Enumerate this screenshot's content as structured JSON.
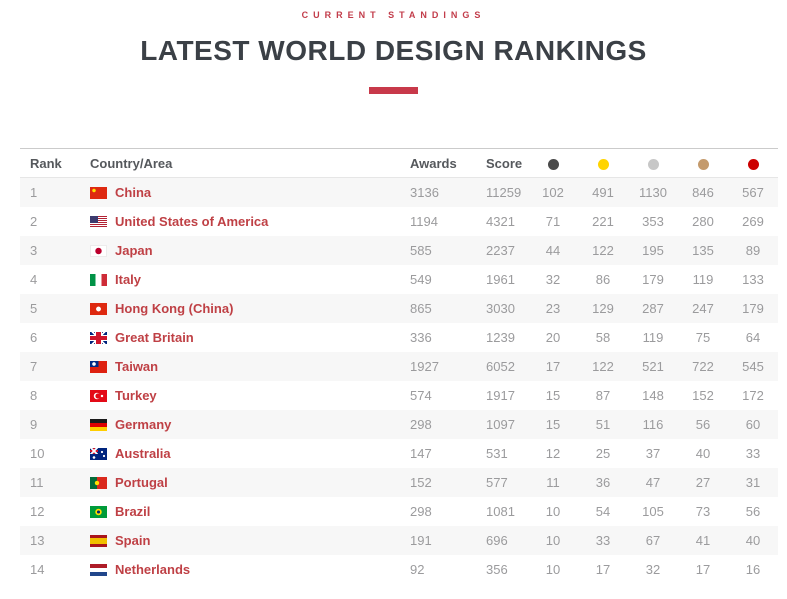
{
  "header": {
    "eyebrow": "CURRENT STANDINGS",
    "title": "LATEST WORLD DESIGN RANKINGS"
  },
  "colors": {
    "accent_red": "#c8394a",
    "country_link_red": "#bf4045",
    "title_charcoal": "#3b4046"
  },
  "table": {
    "columns": {
      "rank": "Rank",
      "country": "Country/Area",
      "awards": "Awards",
      "score": "Score"
    },
    "medal_columns": [
      {
        "name": "platinum",
        "color": "#4a4a4a"
      },
      {
        "name": "gold",
        "color": "#ffd400"
      },
      {
        "name": "silver",
        "color": "#c7c7c7"
      },
      {
        "name": "bronze",
        "color": "#c49a6c"
      },
      {
        "name": "iron",
        "color": "#cc0000"
      }
    ],
    "rows": [
      {
        "rank": 1,
        "flag": "china",
        "country": "China",
        "awards": 3136,
        "score": 11259,
        "medals": [
          102,
          491,
          1130,
          846,
          567
        ]
      },
      {
        "rank": 2,
        "flag": "usa",
        "country": "United States of America",
        "awards": 1194,
        "score": 4321,
        "medals": [
          71,
          221,
          353,
          280,
          269
        ]
      },
      {
        "rank": 3,
        "flag": "japan",
        "country": "Japan",
        "awards": 585,
        "score": 2237,
        "medals": [
          44,
          122,
          195,
          135,
          89
        ]
      },
      {
        "rank": 4,
        "flag": "italy",
        "country": "Italy",
        "awards": 549,
        "score": 1961,
        "medals": [
          32,
          86,
          179,
          119,
          133
        ]
      },
      {
        "rank": 5,
        "flag": "hongkong",
        "country": "Hong Kong (China)",
        "awards": 865,
        "score": 3030,
        "medals": [
          23,
          129,
          287,
          247,
          179
        ]
      },
      {
        "rank": 6,
        "flag": "greatbritain",
        "country": "Great Britain",
        "awards": 336,
        "score": 1239,
        "medals": [
          20,
          58,
          119,
          75,
          64
        ]
      },
      {
        "rank": 7,
        "flag": "taiwan",
        "country": "Taiwan",
        "awards": 1927,
        "score": 6052,
        "medals": [
          17,
          122,
          521,
          722,
          545
        ]
      },
      {
        "rank": 8,
        "flag": "turkey",
        "country": "Turkey",
        "awards": 574,
        "score": 1917,
        "medals": [
          15,
          87,
          148,
          152,
          172
        ]
      },
      {
        "rank": 9,
        "flag": "germany",
        "country": "Germany",
        "awards": 298,
        "score": 1097,
        "medals": [
          15,
          51,
          116,
          56,
          60
        ]
      },
      {
        "rank": 10,
        "flag": "australia",
        "country": "Australia",
        "awards": 147,
        "score": 531,
        "medals": [
          12,
          25,
          37,
          40,
          33
        ]
      },
      {
        "rank": 11,
        "flag": "portugal",
        "country": "Portugal",
        "awards": 152,
        "score": 577,
        "medals": [
          11,
          36,
          47,
          27,
          31
        ]
      },
      {
        "rank": 12,
        "flag": "brazil",
        "country": "Brazil",
        "awards": 298,
        "score": 1081,
        "medals": [
          10,
          54,
          105,
          73,
          56
        ]
      },
      {
        "rank": 13,
        "flag": "spain",
        "country": "Spain",
        "awards": 191,
        "score": 696,
        "medals": [
          10,
          33,
          67,
          41,
          40
        ]
      },
      {
        "rank": 14,
        "flag": "netherlands",
        "country": "Netherlands",
        "awards": 92,
        "score": 356,
        "medals": [
          10,
          17,
          32,
          17,
          16
        ]
      }
    ]
  }
}
